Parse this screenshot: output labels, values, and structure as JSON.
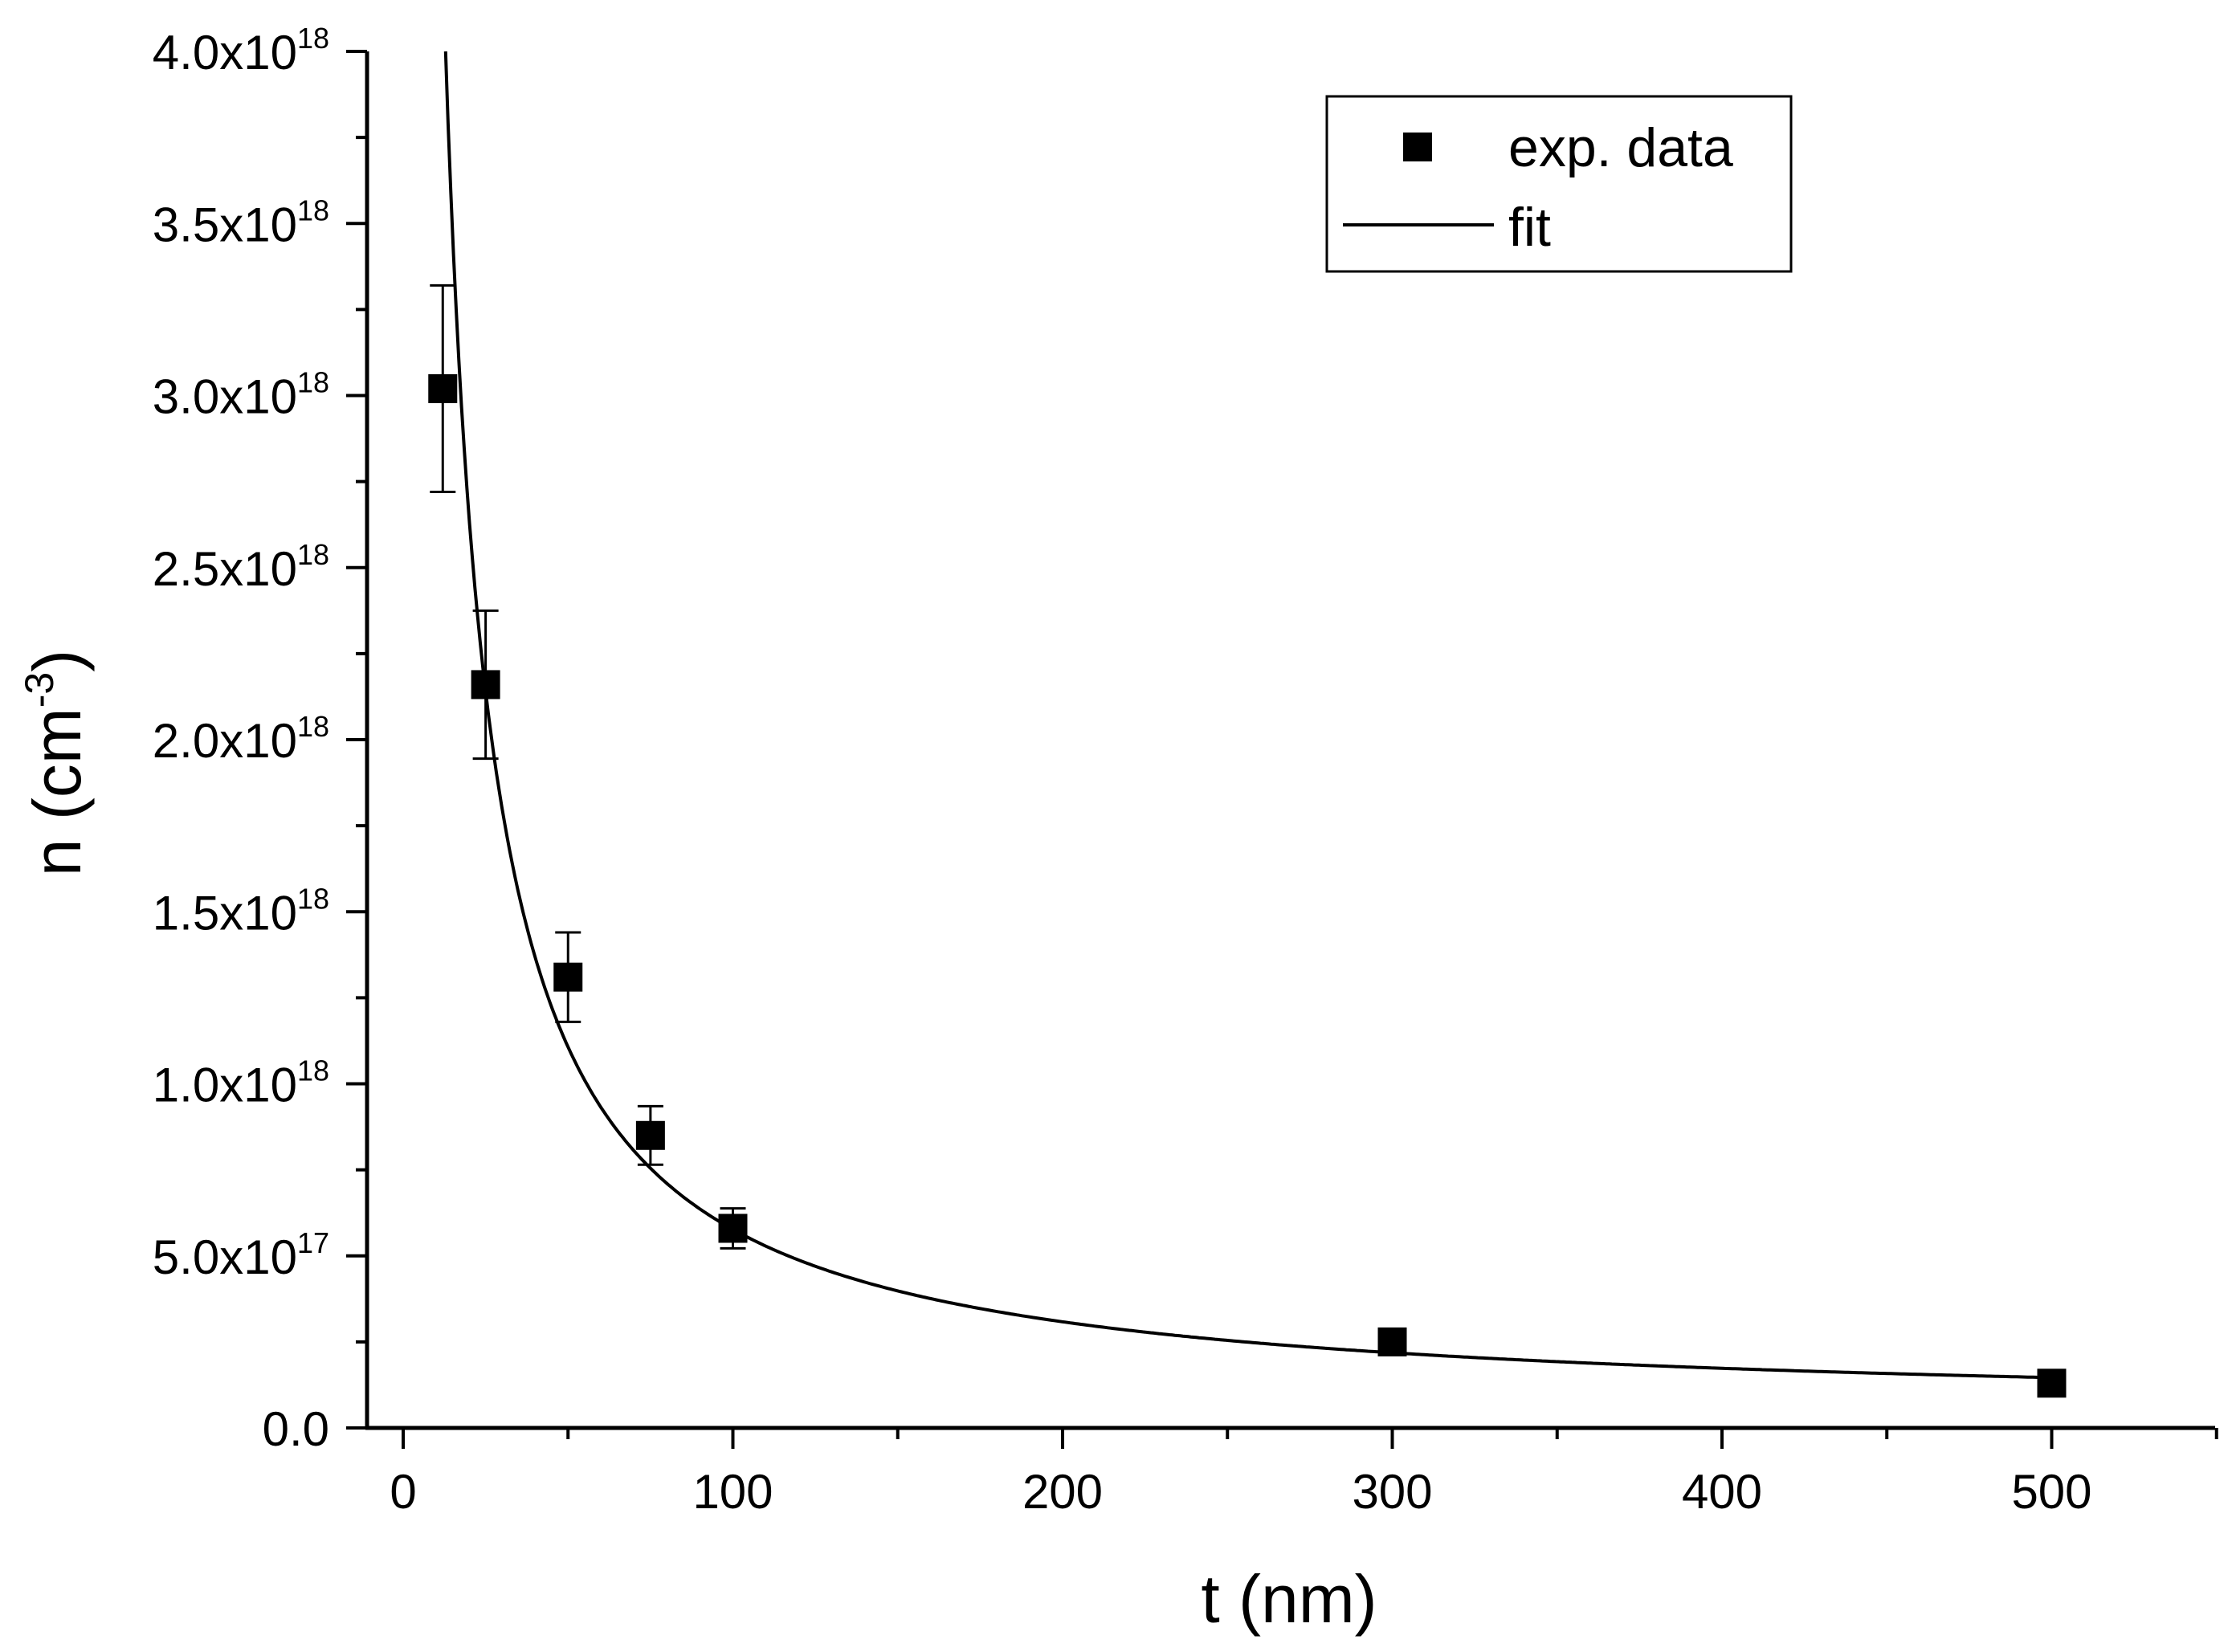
{
  "chart_data": {
    "type": "scatter",
    "xlabel": "t (nm)",
    "ylabel_base": "n (cm",
    "ylabel_sup": "-3",
    "ylabel_close": ")",
    "xlim": [
      -10,
      550
    ],
    "ylim": [
      0,
      4e+18
    ],
    "x_ticks": [
      {
        "value": 0,
        "label": "0"
      },
      {
        "value": 100,
        "label": "100"
      },
      {
        "value": 200,
        "label": "200"
      },
      {
        "value": 300,
        "label": "300"
      },
      {
        "value": 400,
        "label": "400"
      },
      {
        "value": 500,
        "label": "500"
      }
    ],
    "x_minor_ticks": [
      50,
      150,
      250,
      350,
      450,
      550
    ],
    "y_ticks": [
      {
        "value": 0,
        "mant": "0.0",
        "exp": ""
      },
      {
        "value": 5e+17,
        "mant": "5.0x10",
        "exp": "17"
      },
      {
        "value": 1e+18,
        "mant": "1.0x10",
        "exp": "18"
      },
      {
        "value": 1.5e+18,
        "mant": "1.5x10",
        "exp": "18"
      },
      {
        "value": 2e+18,
        "mant": "2.0x10",
        "exp": "18"
      },
      {
        "value": 2.5e+18,
        "mant": "2.5x10",
        "exp": "18"
      },
      {
        "value": 3e+18,
        "mant": "3.0x10",
        "exp": "18"
      },
      {
        "value": 3.5e+18,
        "mant": "3.5x10",
        "exp": "18"
      },
      {
        "value": 4e+18,
        "mant": "4.0x10",
        "exp": "18"
      }
    ],
    "y_minor_ticks": [
      2.5e+17,
      7.5e+17,
      1.25e+18,
      1.75e+18,
      2.25e+18,
      2.75e+18,
      3.25e+18,
      3.75e+18
    ],
    "series": [
      {
        "name": "exp. data",
        "kind": "scatter",
        "points": [
          {
            "x": 12,
            "y": 3.02e+18,
            "err": 3e+17
          },
          {
            "x": 25,
            "y": 2.16e+18,
            "err": 2.15e+17
          },
          {
            "x": 50,
            "y": 1.31e+18,
            "err": 1.3e+17
          },
          {
            "x": 75,
            "y": 8.5e+17,
            "err": 8.5e+16
          },
          {
            "x": 100,
            "y": 5.8e+17,
            "err": 5.8e+16
          },
          {
            "x": 300,
            "y": 2.5e+17,
            "err": null
          },
          {
            "x": 500,
            "y": 1.3e+17,
            "err": null
          }
        ]
      },
      {
        "name": "fit",
        "kind": "line",
        "model": "n = A / (t - t0) + C",
        "params": {
          "A": 5.44e+19,
          "t0": -0.87,
          "C": 3.76e+16
        },
        "x_range": [
          12,
          500
        ]
      }
    ],
    "legend": {
      "position": "top-right",
      "entries": [
        "exp. data",
        "fit"
      ]
    },
    "grid": false
  }
}
